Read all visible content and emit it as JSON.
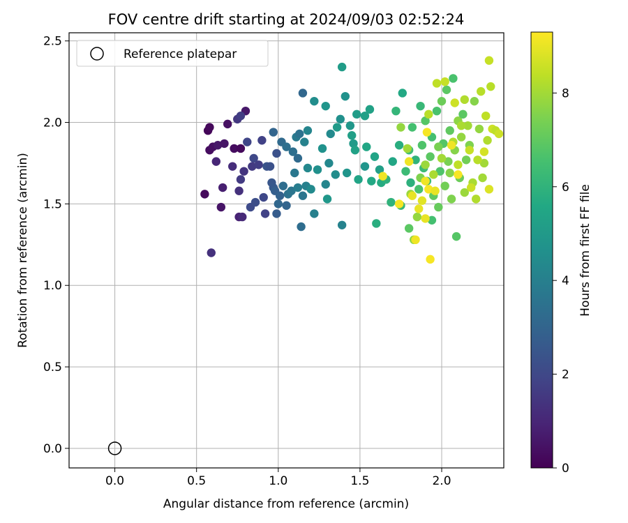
{
  "chart_data": {
    "type": "scatter",
    "title": "FOV centre drift starting at 2024/09/03 02:52:24",
    "xlabel": "Angular distance from reference (arcmin)",
    "ylabel": "Rotation from reference (arcmin)",
    "xlim": [
      -0.28,
      2.38
    ],
    "ylim": [
      -0.12,
      2.55
    ],
    "xticks": [
      0.0,
      0.5,
      1.0,
      1.5,
      2.0
    ],
    "xtick_labels": [
      "0.0",
      "0.5",
      "1.0",
      "1.5",
      "2.0"
    ],
    "yticks": [
      0.0,
      0.5,
      1.0,
      1.5,
      2.0,
      2.5
    ],
    "ytick_labels": [
      "0.0",
      "0.5",
      "1.0",
      "1.5",
      "2.0",
      "2.5"
    ],
    "grid": true,
    "legend": {
      "placement": "top-left",
      "entries": [
        "Reference platepar"
      ]
    },
    "reference_point": {
      "x": 0.0,
      "y": 0.0,
      "label": "Reference platepar"
    },
    "colorbar": {
      "label": "Hours from first FF file",
      "colormap": "viridis",
      "range": [
        0,
        9.3
      ],
      "ticks": [
        0,
        2,
        4,
        6,
        8
      ],
      "tick_labels": [
        "0",
        "2",
        "4",
        "6",
        "8"
      ]
    },
    "series": [
      {
        "values": [
          [
            0.57,
            1.95,
            0.1
          ],
          [
            0.58,
            1.97,
            0.2
          ],
          [
            0.58,
            1.83,
            0.3
          ],
          [
            0.6,
            1.85,
            0.4
          ],
          [
            0.63,
            1.86,
            0.6
          ],
          [
            0.67,
            1.87,
            0.5
          ],
          [
            0.69,
            1.99,
            0.4
          ],
          [
            0.73,
            1.84,
            0.3
          ],
          [
            0.77,
            1.84,
            0.2
          ],
          [
            0.8,
            2.07,
            0.6
          ],
          [
            0.55,
            1.56,
            0.2
          ],
          [
            0.65,
            1.48,
            0.5
          ],
          [
            0.66,
            1.6,
            0.8
          ],
          [
            0.62,
            1.76,
            1.0
          ],
          [
            0.72,
            1.73,
            1.2
          ],
          [
            0.76,
            1.58,
            1.3
          ],
          [
            0.76,
            1.42,
            0.9
          ],
          [
            0.78,
            1.42,
            1.1
          ],
          [
            0.79,
            1.7,
            1.4
          ],
          [
            0.77,
            1.65,
            1.6
          ],
          [
            0.59,
            1.2,
            1.3
          ],
          [
            0.75,
            2.02,
            1.5
          ],
          [
            0.77,
            2.04,
            1.7
          ],
          [
            0.81,
            1.88,
            1.9
          ],
          [
            0.85,
            1.78,
            2.0
          ],
          [
            0.84,
            1.73,
            1.6
          ],
          [
            0.88,
            1.74,
            1.7
          ],
          [
            0.9,
            1.89,
            1.8
          ],
          [
            0.91,
            1.54,
            2.0
          ],
          [
            0.92,
            1.44,
            1.8
          ],
          [
            0.83,
            1.48,
            2.1
          ],
          [
            0.86,
            1.51,
            2.2
          ],
          [
            0.93,
            1.73,
            2.4
          ],
          [
            0.95,
            1.73,
            2.3
          ],
          [
            0.96,
            1.63,
            2.5
          ],
          [
            0.97,
            1.6,
            2.6
          ],
          [
            0.98,
            1.58,
            2.8
          ],
          [
            0.99,
            1.81,
            2.3
          ],
          [
            0.97,
            1.94,
            3.0
          ],
          [
            0.99,
            1.44,
            2.7
          ],
          [
            1.0,
            1.5,
            3.1
          ],
          [
            1.01,
            1.55,
            2.9
          ],
          [
            1.02,
            1.88,
            3.2
          ],
          [
            1.03,
            1.61,
            3.3
          ],
          [
            1.05,
            1.85,
            3.4
          ],
          [
            1.05,
            1.49,
            3.0
          ],
          [
            1.06,
            1.56,
            3.5
          ],
          [
            1.08,
            1.58,
            3.6
          ],
          [
            1.09,
            1.82,
            3.4
          ],
          [
            1.1,
            1.69,
            3.7
          ],
          [
            1.12,
            1.78,
            3.2
          ],
          [
            1.11,
            1.91,
            3.8
          ],
          [
            1.12,
            1.6,
            3.9
          ],
          [
            1.13,
            1.93,
            3.5
          ],
          [
            1.14,
            1.36,
            3.3
          ],
          [
            1.15,
            1.55,
            3.6
          ],
          [
            1.15,
            2.18,
            3.1
          ],
          [
            1.17,
            1.61,
            4.0
          ],
          [
            1.16,
            1.88,
            4.1
          ],
          [
            1.18,
            1.95,
            4.2
          ],
          [
            1.18,
            1.72,
            4.3
          ],
          [
            1.2,
            1.59,
            4.4
          ],
          [
            1.22,
            1.44,
            4.0
          ],
          [
            1.22,
            2.13,
            4.5
          ],
          [
            1.24,
            1.71,
            4.6
          ],
          [
            1.27,
            1.84,
            4.7
          ],
          [
            1.29,
            2.1,
            4.8
          ],
          [
            1.29,
            1.62,
            4.2
          ],
          [
            1.31,
            1.75,
            4.3
          ],
          [
            1.3,
            1.53,
            4.9
          ],
          [
            1.32,
            1.93,
            4.4
          ],
          [
            1.35,
            1.68,
            4.5
          ],
          [
            1.36,
            1.97,
            5.0
          ],
          [
            1.38,
            2.02,
            4.6
          ],
          [
            1.39,
            1.37,
            4.1
          ],
          [
            1.39,
            2.34,
            5.1
          ],
          [
            1.41,
            2.16,
            4.7
          ],
          [
            1.42,
            1.69,
            4.8
          ],
          [
            1.44,
            1.98,
            4.9
          ],
          [
            1.45,
            1.92,
            5.2
          ],
          [
            1.46,
            1.87,
            5.0
          ],
          [
            1.47,
            1.83,
            5.3
          ],
          [
            1.48,
            2.05,
            5.1
          ],
          [
            1.49,
            1.65,
            5.4
          ],
          [
            1.53,
            2.04,
            5.2
          ],
          [
            1.53,
            1.73,
            4.8
          ],
          [
            1.54,
            1.85,
            5.5
          ],
          [
            1.56,
            2.08,
            5.3
          ],
          [
            1.57,
            1.64,
            5.6
          ],
          [
            1.59,
            1.79,
            5.4
          ],
          [
            1.6,
            1.38,
            5.8
          ],
          [
            1.62,
            1.71,
            5.2
          ],
          [
            1.63,
            1.63,
            5.7
          ],
          [
            1.66,
            1.65,
            5.9
          ],
          [
            1.69,
            1.51,
            6.0
          ],
          [
            1.7,
            1.76,
            5.5
          ],
          [
            1.72,
            2.07,
            6.1
          ],
          [
            1.74,
            1.86,
            5.8
          ],
          [
            1.75,
            1.49,
            6.2
          ],
          [
            1.76,
            2.18,
            5.6
          ],
          [
            1.78,
            1.7,
            6.3
          ],
          [
            1.8,
            1.83,
            6.4
          ],
          [
            1.81,
            1.63,
            5.9
          ],
          [
            1.82,
            1.97,
            6.5
          ],
          [
            1.84,
            1.77,
            6.0
          ],
          [
            1.86,
            1.59,
            6.6
          ],
          [
            1.87,
            2.1,
            6.2
          ],
          [
            1.88,
            1.86,
            6.7
          ],
          [
            1.89,
            1.72,
            6.3
          ],
          [
            1.9,
            2.01,
            6.8
          ],
          [
            1.91,
            1.64,
            6.4
          ],
          [
            1.93,
            1.79,
            6.9
          ],
          [
            1.94,
            1.91,
            6.5
          ],
          [
            1.95,
            1.55,
            7.0
          ],
          [
            1.97,
            2.07,
            6.6
          ],
          [
            1.98,
            1.48,
            7.1
          ],
          [
            1.99,
            1.7,
            6.7
          ],
          [
            2.0,
            2.13,
            7.2
          ],
          [
            2.01,
            1.87,
            6.8
          ],
          [
            2.02,
            1.61,
            7.3
          ],
          [
            2.03,
            2.2,
            6.9
          ],
          [
            2.04,
            1.76,
            7.4
          ],
          [
            2.05,
            1.95,
            7.0
          ],
          [
            2.06,
            1.53,
            7.5
          ],
          [
            2.07,
            2.27,
            6.6
          ],
          [
            2.08,
            1.83,
            7.6
          ],
          [
            2.09,
            1.3,
            6.8
          ],
          [
            2.1,
            2.01,
            7.7
          ],
          [
            2.11,
            1.66,
            7.2
          ],
          [
            2.12,
            1.91,
            7.8
          ],
          [
            2.13,
            2.05,
            6.9
          ],
          [
            2.14,
            1.57,
            7.9
          ],
          [
            2.15,
            1.77,
            7.3
          ],
          [
            2.16,
            1.98,
            8.0
          ],
          [
            2.17,
            1.86,
            7.5
          ],
          [
            2.19,
            1.63,
            8.1
          ],
          [
            2.2,
            2.13,
            7.6
          ],
          [
            2.21,
            1.53,
            8.2
          ],
          [
            2.23,
            1.96,
            7.8
          ],
          [
            2.24,
            2.19,
            8.3
          ],
          [
            2.26,
            1.75,
            8.0
          ],
          [
            2.27,
            2.04,
            8.4
          ],
          [
            2.28,
            1.89,
            8.2
          ],
          [
            2.29,
            2.38,
            8.5
          ],
          [
            2.3,
            2.22,
            8.3
          ],
          [
            2.31,
            1.96,
            8.6
          ],
          [
            2.33,
            1.95,
            8.4
          ],
          [
            2.35,
            1.93,
            8.6
          ],
          [
            2.29,
            1.59,
            8.8
          ],
          [
            2.26,
            1.82,
            8.7
          ],
          [
            2.02,
            2.25,
            8.5
          ],
          [
            1.92,
            2.05,
            8.3
          ],
          [
            1.97,
            2.24,
            8.4
          ],
          [
            2.08,
            2.12,
            8.6
          ],
          [
            2.14,
            2.14,
            8.2
          ],
          [
            1.75,
            1.97,
            7.8
          ],
          [
            1.79,
            1.84,
            8.0
          ],
          [
            1.81,
            1.56,
            7.9
          ],
          [
            1.83,
            1.28,
            7.7
          ],
          [
            1.85,
            1.42,
            7.8
          ],
          [
            1.8,
            1.35,
            6.9
          ],
          [
            1.94,
            1.4,
            6.5
          ],
          [
            1.87,
            1.66,
            7.5
          ],
          [
            1.9,
            1.74,
            7.9
          ],
          [
            1.95,
            1.68,
            8.1
          ],
          [
            1.98,
            1.85,
            7.4
          ],
          [
            2.0,
            1.78,
            8.0
          ],
          [
            2.05,
            1.69,
            7.6
          ],
          [
            2.07,
            1.88,
            8.2
          ],
          [
            2.1,
            1.74,
            8.4
          ],
          [
            1.88,
            1.52,
            8.9
          ],
          [
            1.9,
            1.41,
            9.0
          ],
          [
            1.93,
            1.16,
            9.2
          ],
          [
            1.84,
            1.28,
            9.1
          ],
          [
            1.86,
            1.47,
            9.0
          ],
          [
            1.9,
            1.64,
            9.1
          ],
          [
            1.92,
            1.59,
            9.2
          ],
          [
            1.96,
            1.58,
            9.0
          ],
          [
            1.8,
            1.76,
            9.1
          ],
          [
            1.82,
            1.55,
            9.0
          ],
          [
            1.74,
            1.5,
            9.2
          ],
          [
            1.64,
            1.67,
            9.1
          ],
          [
            1.91,
            1.94,
            9.2
          ],
          [
            2.06,
            1.86,
            9.1
          ],
          [
            2.1,
            1.68,
            9.2
          ],
          [
            2.12,
            1.98,
            8.1
          ],
          [
            2.17,
            1.83,
            8.5
          ],
          [
            2.22,
            1.77,
            8.3
          ],
          [
            2.18,
            1.6,
            8.6
          ],
          [
            2.25,
            1.66,
            8.0
          ]
        ]
      }
    ]
  }
}
